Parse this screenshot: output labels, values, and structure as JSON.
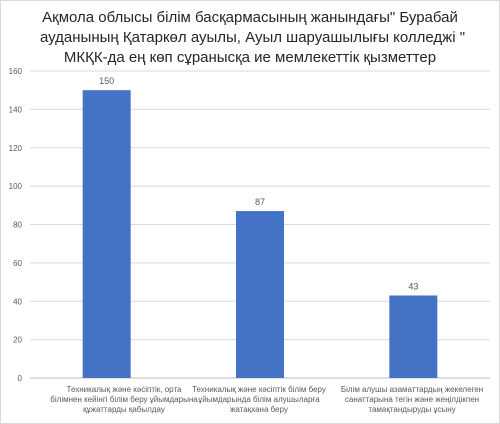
{
  "chart_data": {
    "type": "bar",
    "title": {
      "lines": [
        "Ақмола облысы білім басқармасының жанындағы\" Бурабай",
        "ауданының Қатаркөл ауылы, Ауыл шаруашылығы колледжі \"",
        "МКҚК-да ең көп сұранысқа ие мемлекеттік қызметтер"
      ]
    },
    "categories": [
      [
        "Техникалық және кәсіптік, орта",
        "білімнен кейінгі білім беру ұйымдарына",
        "құжаттарды қабылдау"
      ],
      [
        "Техникалық және кәсіптік білім беру",
        "ұйымдарында білім алушыларға",
        "жатақхана беру"
      ],
      [
        "Білім алушы азаматтардың жекелеген",
        "санаттарына тегін және жеңілдікпен",
        "тамақтандыруды ұсыну"
      ]
    ],
    "values": [
      150,
      87,
      43
    ],
    "data_labels": [
      "150",
      "87",
      "43"
    ],
    "ylim": [
      0,
      160
    ],
    "yticks": [
      0,
      20,
      40,
      60,
      80,
      100,
      120,
      140,
      160
    ],
    "ytick_labels": [
      "0",
      "20",
      "40",
      "60",
      "80",
      "100",
      "120",
      "140",
      "160"
    ],
    "grid": true,
    "bar_color": "#4472c4",
    "grid_color": "#d9d9d9",
    "axis_color": "#bfbfbf",
    "text_color": "#595959"
  }
}
